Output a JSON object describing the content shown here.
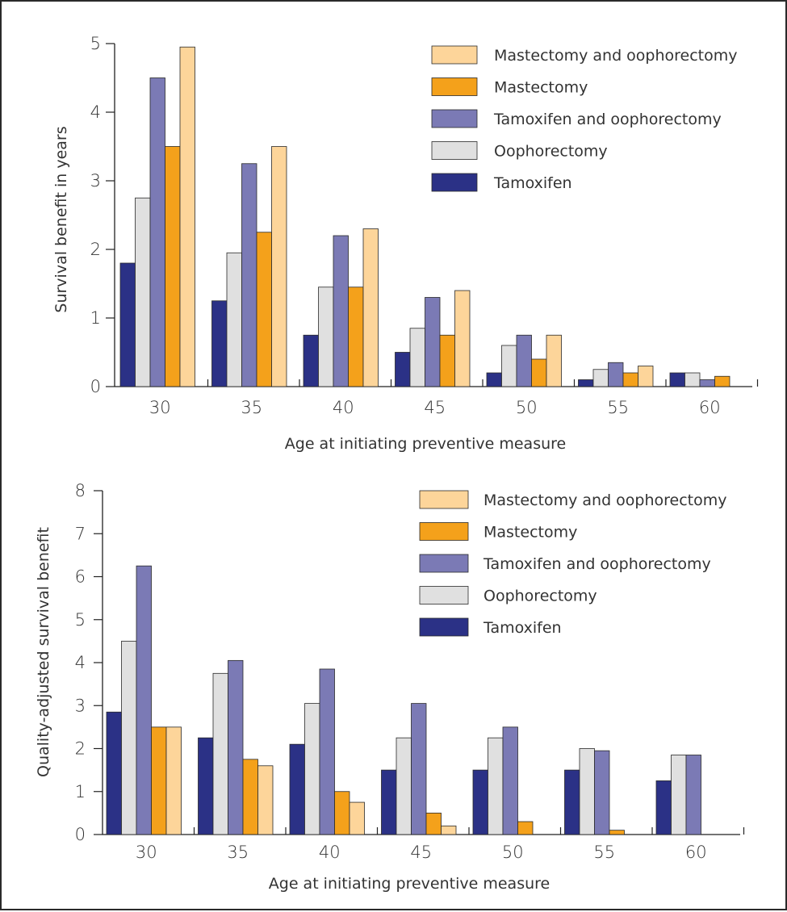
{
  "chart_data": [
    {
      "type": "bar",
      "xlabel": "Age at initiating preventive measure",
      "ylabel": "Survival benefit in years",
      "categories": [
        "30",
        "35",
        "40",
        "45",
        "50",
        "55",
        "60"
      ],
      "ylim": [
        0,
        5
      ],
      "yticks": [
        "0",
        "1",
        "2",
        "3",
        "4",
        "5"
      ],
      "legend_position": "top-right",
      "series": [
        {
          "name": "Tamoxifen",
          "color": "#2b3186",
          "values": [
            1.8,
            1.25,
            0.75,
            0.5,
            0.2,
            0.1,
            0.2
          ]
        },
        {
          "name": "Oophorectomy",
          "color": "#e0e0e0",
          "values": [
            2.75,
            1.95,
            1.45,
            0.85,
            0.6,
            0.25,
            0.2
          ]
        },
        {
          "name": "Tamoxifen and oophorectomy",
          "color": "#7b7ab5",
          "values": [
            4.5,
            3.25,
            2.2,
            1.3,
            0.75,
            0.35,
            0.1
          ]
        },
        {
          "name": "Mastectomy",
          "color": "#f4a11b",
          "values": [
            3.5,
            2.25,
            1.45,
            0.75,
            0.4,
            0.2,
            0.15
          ]
        },
        {
          "name": "Mastectomy and oophorectomy",
          "color": "#fdd59a",
          "values": [
            4.95,
            3.5,
            2.3,
            1.4,
            0.75,
            0.3,
            0
          ]
        }
      ],
      "legend_order": [
        "Mastectomy and oophorectomy",
        "Mastectomy",
        "Tamoxifen and oophorectomy",
        "Oophorectomy",
        "Tamoxifen"
      ]
    },
    {
      "type": "bar",
      "xlabel": "Age at initiating preventive measure",
      "ylabel": "Quality-adjusted survival benefit",
      "categories": [
        "30",
        "35",
        "40",
        "45",
        "50",
        "55",
        "60"
      ],
      "ylim": [
        0,
        8
      ],
      "yticks": [
        "0",
        "1",
        "2",
        "3",
        "4",
        "5",
        "6",
        "7",
        "8"
      ],
      "legend_position": "top-right",
      "series": [
        {
          "name": "Tamoxifen",
          "color": "#2b3186",
          "values": [
            2.85,
            2.25,
            2.1,
            1.5,
            1.5,
            1.5,
            1.25
          ]
        },
        {
          "name": "Oophorectomy",
          "color": "#e0e0e0",
          "values": [
            4.5,
            3.75,
            3.05,
            2.25,
            2.25,
            2.0,
            1.85
          ]
        },
        {
          "name": "Tamoxifen and oophorectomy",
          "color": "#7b7ab5",
          "values": [
            6.25,
            4.05,
            3.85,
            3.05,
            2.5,
            1.95,
            1.85
          ]
        },
        {
          "name": "Mastectomy",
          "color": "#f4a11b",
          "values": [
            2.5,
            1.75,
            1.0,
            0.5,
            0.3,
            0.1,
            0
          ]
        },
        {
          "name": "Mastectomy and oophorectomy",
          "color": "#fdd59a",
          "values": [
            2.5,
            1.6,
            0.75,
            0.2,
            0,
            0,
            0
          ]
        }
      ],
      "legend_order": [
        "Mastectomy and oophorectomy",
        "Mastectomy",
        "Tamoxifen and oophorectomy",
        "Oophorectomy",
        "Tamoxifen"
      ]
    }
  ]
}
